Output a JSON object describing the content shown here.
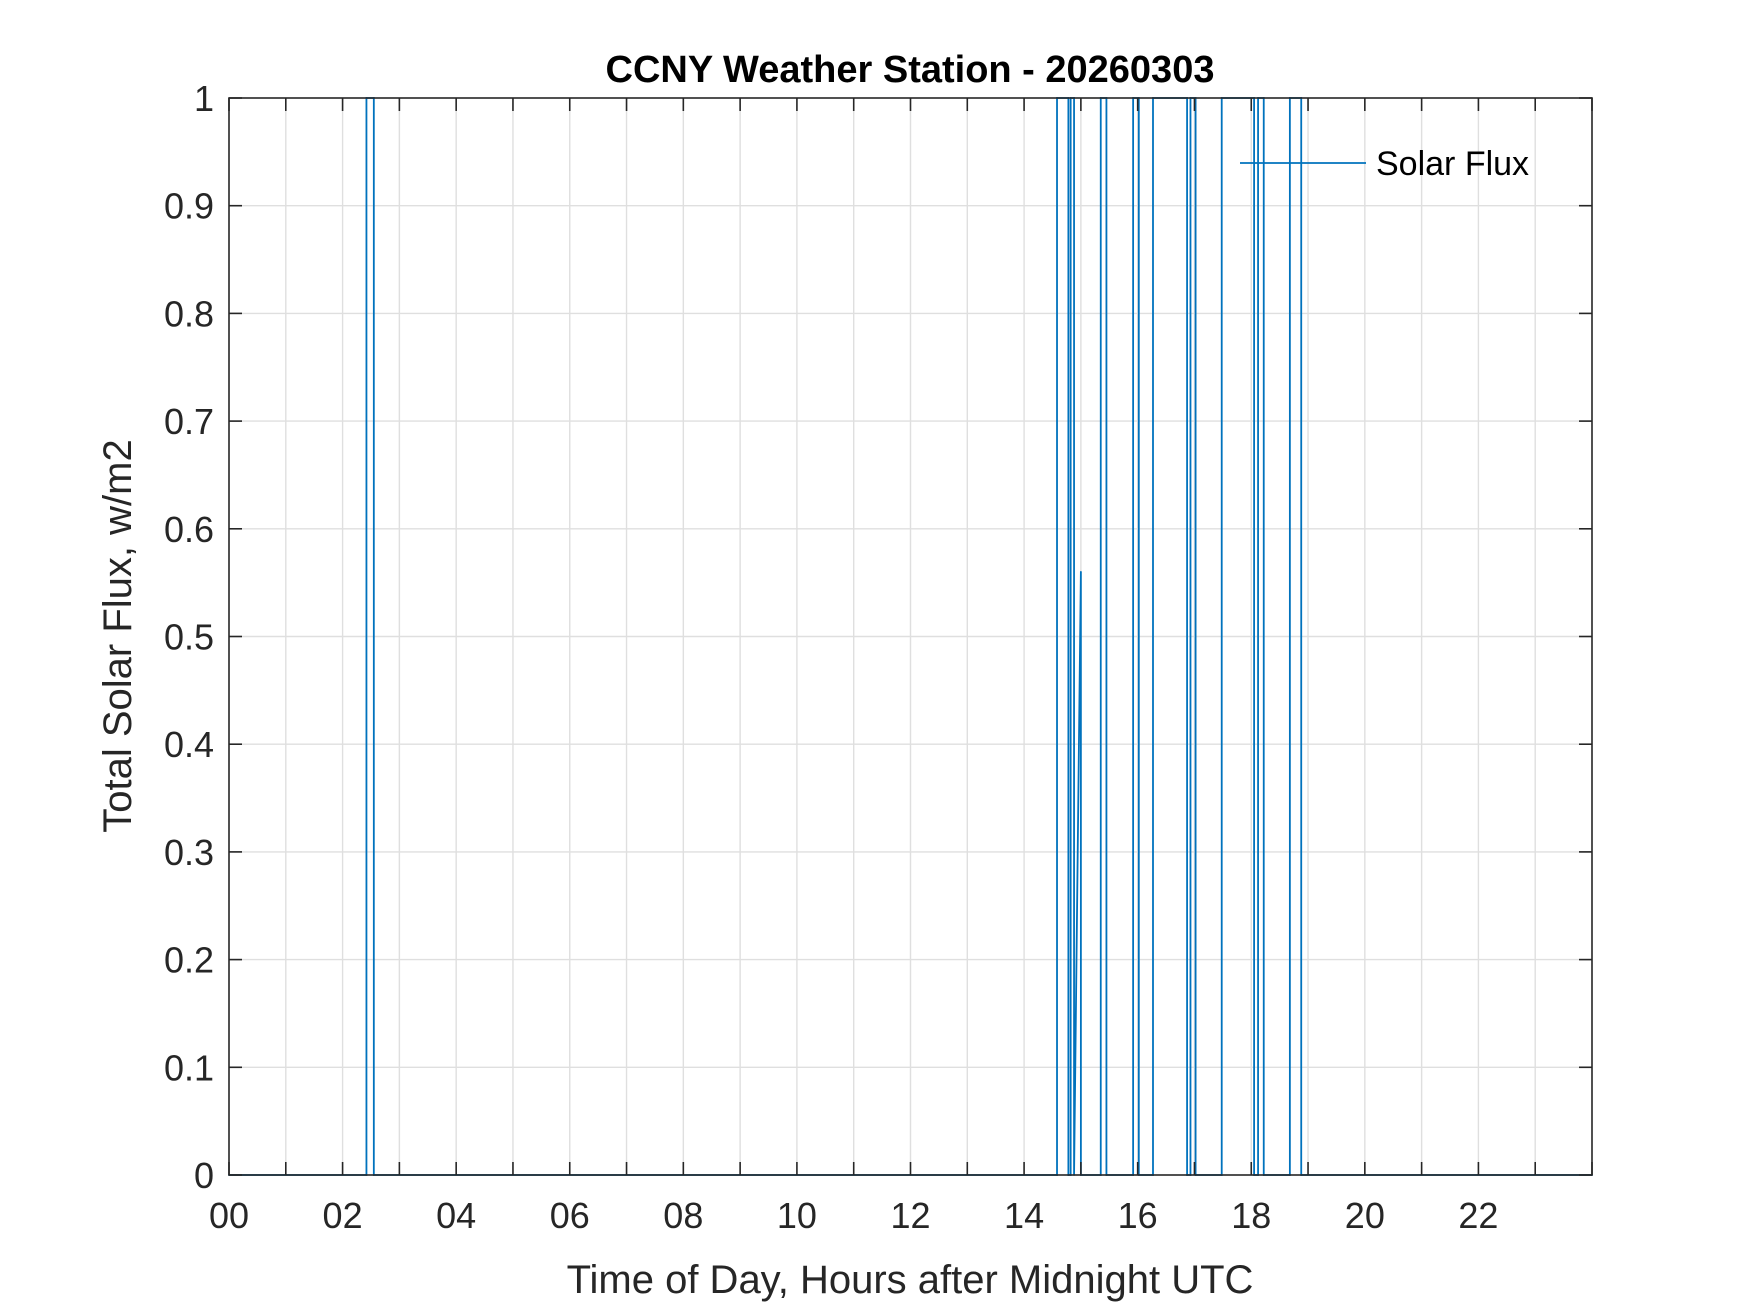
{
  "chart_data": {
    "type": "line",
    "title": "CCNY Weather Station - 20260303",
    "xlabel": "Time of Day, Hours after Midnight UTC",
    "ylabel": "Total Solar Flux, w/m2",
    "xlim": [
      0,
      24
    ],
    "ylim": [
      0,
      1
    ],
    "grid": true,
    "legend_position": "top-right",
    "x_ticks": [
      0,
      2,
      4,
      6,
      8,
      10,
      12,
      14,
      16,
      18,
      20,
      22
    ],
    "x_tick_labels": [
      "00",
      "02",
      "04",
      "06",
      "08",
      "10",
      "12",
      "14",
      "16",
      "18",
      "20",
      "22"
    ],
    "y_ticks": [
      0,
      0.1,
      0.2,
      0.3,
      0.4,
      0.5,
      0.6,
      0.7,
      0.8,
      0.9,
      1
    ],
    "y_tick_labels": [
      "0",
      "0.1",
      "0.2",
      "0.3",
      "0.4",
      "0.5",
      "0.6",
      "0.7",
      "0.8",
      "0.9",
      "1"
    ],
    "series": [
      {
        "name": "Solar Flux",
        "color": "#0072BD",
        "x": [
          0,
          2.42,
          2.42,
          2.55,
          2.55,
          14.58,
          14.58,
          14.78,
          14.78,
          14.82,
          14.82,
          14.88,
          14.88,
          15.0,
          15.0,
          15.35,
          15.35,
          15.45,
          15.45,
          15.92,
          15.92,
          16.02,
          16.02,
          16.27,
          16.27,
          16.87,
          16.87,
          16.93,
          16.93,
          17.02,
          17.02,
          17.48,
          17.48,
          18.05,
          18.05,
          18.12,
          18.12,
          18.22,
          18.22,
          18.68,
          18.68,
          18.88,
          18.88,
          24
        ],
        "y": [
          0,
          0,
          1,
          1,
          0,
          0,
          1,
          1,
          0,
          0,
          1,
          1,
          0,
          0.56,
          0,
          0,
          1,
          1,
          0,
          0,
          1,
          1,
          0,
          0,
          1,
          1,
          0,
          0,
          1,
          1,
          0,
          0,
          1,
          1,
          0,
          0,
          1,
          1,
          0,
          0,
          1,
          1,
          0,
          0
        ]
      }
    ]
  }
}
